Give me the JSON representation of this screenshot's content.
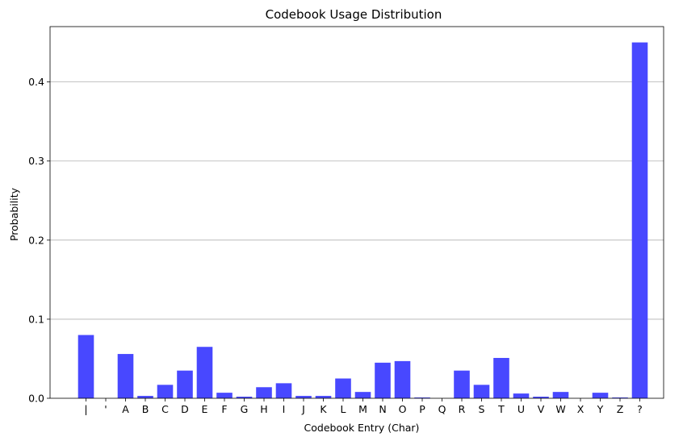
{
  "chart_data": {
    "type": "bar",
    "title": "Codebook Usage Distribution",
    "xlabel": "Codebook Entry (Char)",
    "ylabel": "Probability",
    "ylim": [
      0,
      0.47
    ],
    "yticks": [
      "0.0",
      "0.1",
      "0.2",
      "0.3",
      "0.4"
    ],
    "ytick_values": [
      0.0,
      0.1,
      0.2,
      0.3,
      0.4
    ],
    "grid": "horizontal",
    "bar_color": "#4848ff",
    "categories": [
      "|",
      "'",
      "A",
      "B",
      "C",
      "D",
      "E",
      "F",
      "G",
      "H",
      "I",
      "J",
      "K",
      "L",
      "M",
      "N",
      "O",
      "P",
      "Q",
      "R",
      "S",
      "T",
      "U",
      "V",
      "W",
      "X",
      "Y",
      "Z",
      "?"
    ],
    "values": [
      0.08,
      0.0,
      0.056,
      0.003,
      0.017,
      0.035,
      0.065,
      0.007,
      0.002,
      0.014,
      0.019,
      0.003,
      0.003,
      0.025,
      0.008,
      0.045,
      0.047,
      0.001,
      0.0,
      0.035,
      0.017,
      0.051,
      0.006,
      0.002,
      0.008,
      0.0,
      0.007,
      0.001,
      0.45
    ]
  }
}
